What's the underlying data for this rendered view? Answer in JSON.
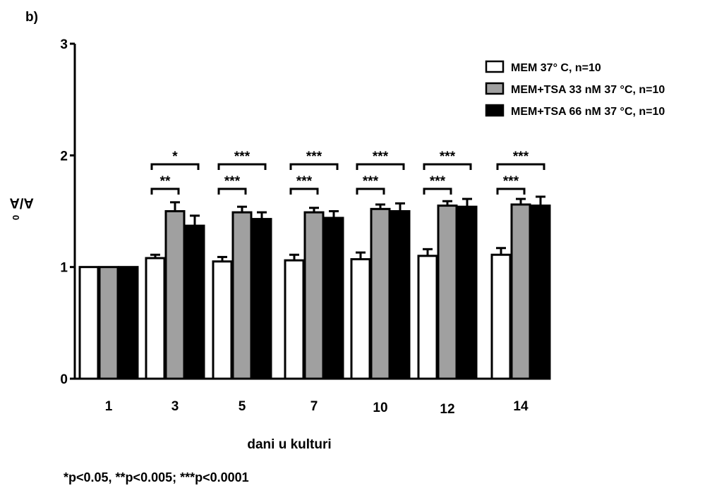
{
  "panel_label": "b)",
  "footnote": "*p<0.05, **p<0.005; ***p<0.0001",
  "colors": {
    "mem": "#ffffff",
    "tsa33": "#a0a0a0",
    "tsa66": "#000000",
    "axis": "#000000"
  },
  "chart_data": {
    "type": "bar",
    "xlabel": "dani u kulturi",
    "ylabel_main": "A/A",
    "ylabel_sub": "0",
    "ylim": [
      0,
      3
    ],
    "yticks": [
      0,
      1,
      2,
      3
    ],
    "categories": [
      "1",
      "3",
      "5",
      "7",
      "10",
      "12",
      "14"
    ],
    "legend_position": "top-right",
    "series": [
      {
        "name": "MEM 37° C, n=10",
        "values": [
          1.0,
          1.08,
          1.05,
          1.06,
          1.07,
          1.1,
          1.11
        ],
        "errors": [
          0,
          0.03,
          0.04,
          0.05,
          0.06,
          0.06,
          0.06
        ]
      },
      {
        "name": "MEM+TSA 33 nM 37  °C, n=10",
        "values": [
          1.0,
          1.5,
          1.49,
          1.49,
          1.52,
          1.55,
          1.56
        ],
        "errors": [
          0,
          0.08,
          0.05,
          0.04,
          0.04,
          0.04,
          0.05
        ]
      },
      {
        "name": "MEM+TSA 66 nM 37  °C, n=10",
        "values": [
          1.0,
          1.37,
          1.43,
          1.44,
          1.5,
          1.54,
          1.55
        ],
        "errors": [
          0,
          0.09,
          0.06,
          0.06,
          0.07,
          0.07,
          0.08
        ]
      }
    ],
    "significance": [
      {
        "category": 1,
        "pair": [
          0,
          1
        ],
        "label": "**",
        "level": 1.7
      },
      {
        "category": 1,
        "pair": [
          0,
          2
        ],
        "label": "*",
        "level": 1.92
      },
      {
        "category": 2,
        "pair": [
          0,
          1
        ],
        "label": "***",
        "level": 1.7
      },
      {
        "category": 2,
        "pair": [
          0,
          2
        ],
        "label": "***",
        "level": 1.92
      },
      {
        "category": 3,
        "pair": [
          0,
          1
        ],
        "label": "***",
        "level": 1.7
      },
      {
        "category": 3,
        "pair": [
          0,
          2
        ],
        "label": "***",
        "level": 1.92
      },
      {
        "category": 4,
        "pair": [
          0,
          1
        ],
        "label": "***",
        "level": 1.7
      },
      {
        "category": 4,
        "pair": [
          0,
          2
        ],
        "label": "***",
        "level": 1.92
      },
      {
        "category": 5,
        "pair": [
          0,
          1
        ],
        "label": "***",
        "level": 1.7
      },
      {
        "category": 5,
        "pair": [
          0,
          2
        ],
        "label": "***",
        "level": 1.92
      },
      {
        "category": 6,
        "pair": [
          0,
          1
        ],
        "label": "***",
        "level": 1.7
      },
      {
        "category": 6,
        "pair": [
          0,
          2
        ],
        "label": "***",
        "level": 1.92
      }
    ]
  }
}
